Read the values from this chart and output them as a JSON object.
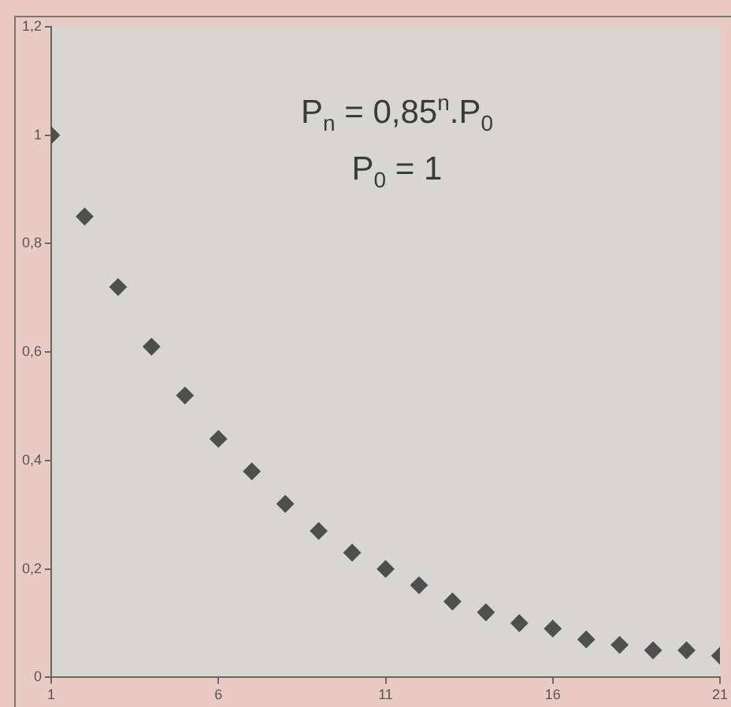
{
  "chart_data": {
    "type": "scatter",
    "annotations": [
      "P$_{n}$ = 0,85$^{n}$.P$_{0}$",
      "P$_{0}$ = 1"
    ],
    "x": [
      1,
      2,
      3,
      4,
      5,
      6,
      7,
      8,
      9,
      10,
      11,
      12,
      13,
      14,
      15,
      16,
      17,
      18,
      19,
      20,
      21
    ],
    "series": [
      {
        "color": "#4f4f4f",
        "values": [
          1,
          0.85,
          0.72,
          0.61,
          0.52,
          0.44,
          0.38,
          0.32,
          0.27,
          0.23,
          0.2,
          0.17,
          0.14,
          0.12,
          0.1,
          0.09,
          0.07,
          0.06,
          0.05,
          0.05,
          0.04
        ]
      }
    ],
    "xlim": [
      1,
      21
    ],
    "xticks": [
      1,
      6,
      11,
      16,
      21
    ],
    "ylim": [
      0,
      1.2
    ],
    "yticks": [
      0,
      {
        "value": 0.2,
        "label": "0,2"
      },
      {
        "value": 0.4,
        "label": "0,4"
      },
      {
        "value": 0.6,
        "label": "0,6"
      },
      {
        "value": 0.8,
        "label": "0,8"
      },
      1,
      {
        "value": 1.2,
        "label": "1,2"
      }
    ],
    "marker": "diamond",
    "legend": false
  }
}
